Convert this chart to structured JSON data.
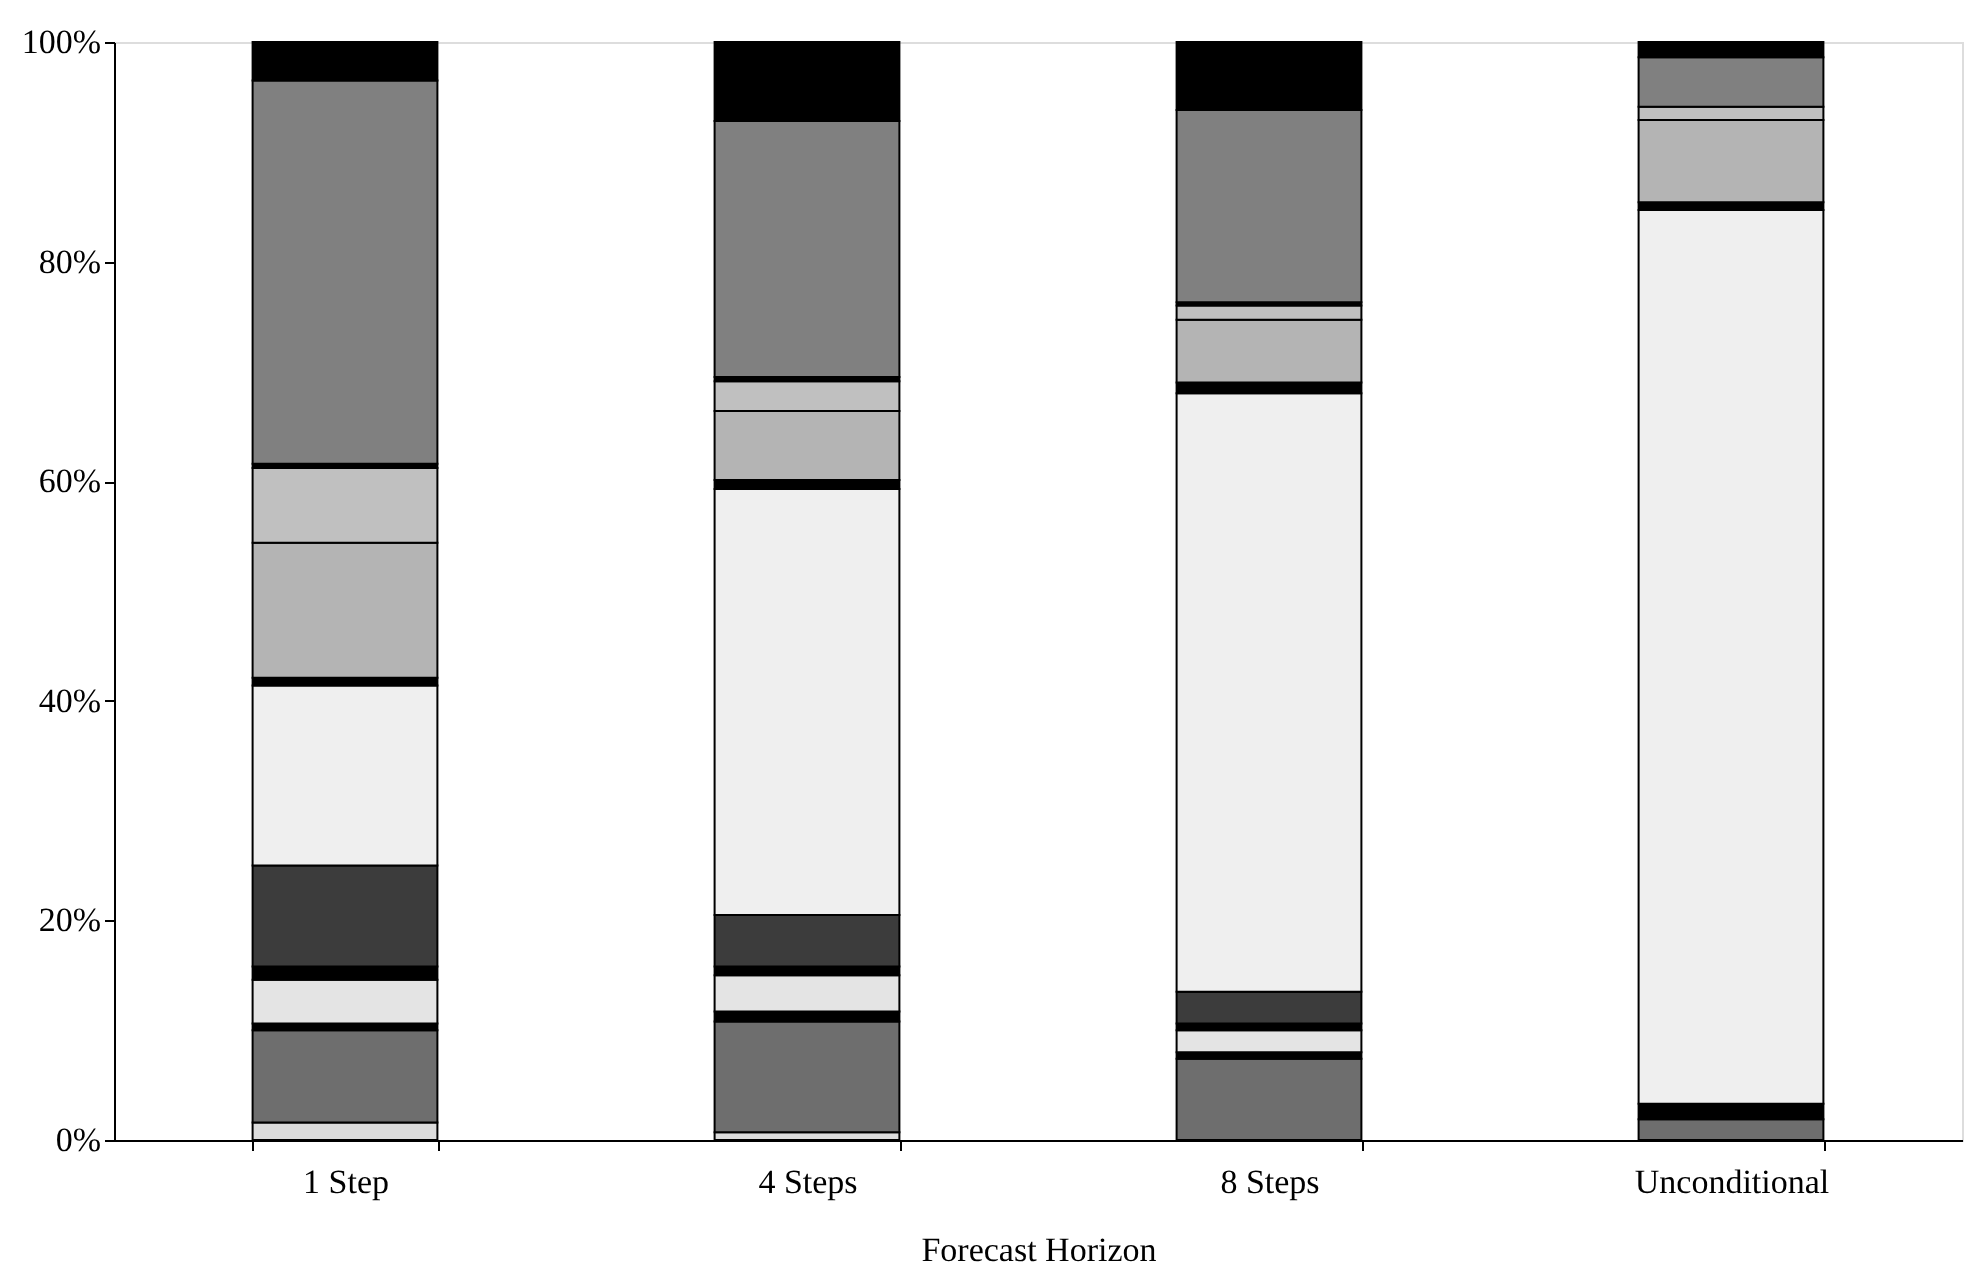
{
  "chart_data": {
    "type": "bar",
    "stacked": true,
    "xlabel": "Forecast Horizon",
    "categories": [
      "1 Step",
      "4 Steps",
      "8 Steps",
      "Unconditional"
    ],
    "ylim": [
      0,
      100
    ],
    "yticks": [
      {
        "value": 0,
        "label": "0%"
      },
      {
        "value": 20,
        "label": "20%"
      },
      {
        "value": 40,
        "label": "40%"
      },
      {
        "value": 60,
        "label": "60%"
      },
      {
        "value": 80,
        "label": "80%"
      },
      {
        "value": 100,
        "label": "100%"
      }
    ],
    "grid": false,
    "legend": false,
    "series": [
      {
        "color": "#dcdcdc",
        "values": [
          1.6,
          0.7,
          null,
          null
        ]
      },
      {
        "color": "#6e6e6e",
        "values": [
          8.4,
          10.1,
          7.4,
          1.9
        ]
      },
      {
        "color": "#000000",
        "values": [
          0.6,
          0.9,
          0.6,
          1.4
        ]
      },
      {
        "color": "#e4e4e4",
        "values": [
          4.0,
          3.3,
          2.0,
          null
        ]
      },
      {
        "color": "#000000",
        "values": [
          1.2,
          0.8,
          0.6,
          null
        ]
      },
      {
        "color": "#3c3c3c",
        "values": [
          9.2,
          4.7,
          2.9,
          null
        ]
      },
      {
        "color": "#efefef",
        "values": [
          16.4,
          38.8,
          54.5,
          81.4
        ]
      },
      {
        "color": "#000000",
        "values": [
          0.7,
          0.8,
          1.0,
          0.7
        ]
      },
      {
        "color": "#b4b4b4",
        "values": [
          12.3,
          6.3,
          5.7,
          7.5
        ]
      },
      {
        "color": "#c0c0c0",
        "values": [
          6.8,
          2.7,
          1.3,
          1.2
        ]
      },
      {
        "color": "#000000",
        "values": [
          0.4,
          0.4,
          0.3,
          null
        ]
      },
      {
        "color": "#808080",
        "values": [
          34.9,
          23.3,
          17.5,
          4.5
        ]
      },
      {
        "color": "#000000",
        "values": [
          3.5,
          7.2,
          6.2,
          1.4
        ]
      }
    ]
  }
}
